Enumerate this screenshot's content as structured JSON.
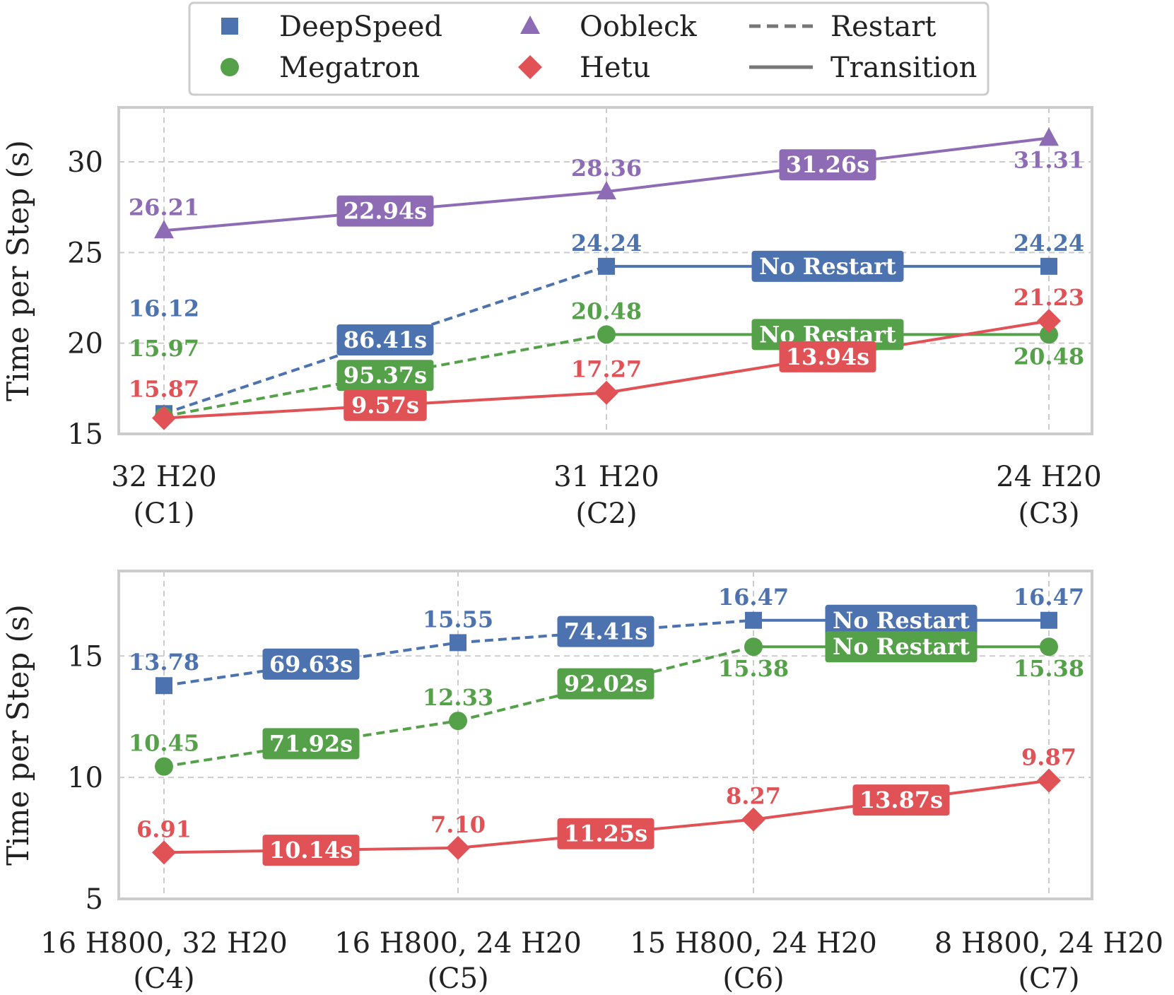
{
  "chart_data": [
    {
      "type": "line",
      "ylabel": "Time per Step (s)",
      "ylim": [
        15,
        33
      ],
      "yticks": [
        15,
        20,
        25,
        30
      ],
      "categories": [
        {
          "line1": "32 H20",
          "line2": "(C1)"
        },
        {
          "line1": "31 H20",
          "line2": "(C2)"
        },
        {
          "line1": "24 H20",
          "line2": "(C3)"
        }
      ],
      "series": [
        {
          "name": "Oobleck",
          "marker": "triangle",
          "values": [
            26.21,
            28.36,
            31.31
          ],
          "value_labels": [
            "26.21",
            "28.36",
            "31.31"
          ],
          "label_placement": [
            "above",
            "above",
            "below"
          ],
          "segment_styles": [
            "solid",
            "solid"
          ],
          "segment_labels": [
            "22.94s",
            "31.26s"
          ]
        },
        {
          "name": "DeepSpeed",
          "marker": "square",
          "values": [
            16.12,
            24.24,
            24.24
          ],
          "value_labels": [
            "16.12",
            "24.24",
            "24.24"
          ],
          "label_placement": [
            "above-far",
            "above",
            "above"
          ],
          "segment_styles": [
            "dashed",
            "solid"
          ],
          "segment_labels": [
            "86.41s",
            "No Restart"
          ]
        },
        {
          "name": "Megatron",
          "marker": "circle",
          "values": [
            15.97,
            20.48,
            20.48
          ],
          "value_labels": [
            "15.97",
            "20.48",
            "20.48"
          ],
          "label_placement": [
            "above-mid",
            "above",
            "below"
          ],
          "segment_styles": [
            "dashed",
            "solid"
          ],
          "segment_labels": [
            "95.37s",
            "No Restart"
          ]
        },
        {
          "name": "Hetu",
          "marker": "diamond",
          "values": [
            15.87,
            17.27,
            21.23
          ],
          "value_labels": [
            "15.87",
            "17.27",
            "21.23"
          ],
          "label_placement": [
            "above",
            "above",
            "above"
          ],
          "segment_styles": [
            "solid",
            "solid"
          ],
          "segment_labels": [
            "9.57s",
            "13.94s"
          ]
        }
      ]
    },
    {
      "type": "line",
      "ylabel": "Time per Step (s)",
      "ylim": [
        5,
        18.5
      ],
      "yticks": [
        5,
        10,
        15
      ],
      "categories": [
        {
          "line1": "16 H800, 32 H20",
          "line2": "(C4)"
        },
        {
          "line1": "16 H800, 24 H20",
          "line2": "(C5)"
        },
        {
          "line1": "15 H800, 24 H20",
          "line2": "(C6)"
        },
        {
          "line1": "8 H800, 24 H20",
          "line2": "(C7)"
        }
      ],
      "series": [
        {
          "name": "DeepSpeed",
          "marker": "square",
          "values": [
            13.78,
            15.55,
            16.47,
            16.47
          ],
          "value_labels": [
            "13.78",
            "15.55",
            "16.47",
            "16.47"
          ],
          "label_placement": [
            "above",
            "above",
            "above",
            "above"
          ],
          "segment_styles": [
            "dashed",
            "dashed",
            "solid"
          ],
          "segment_labels": [
            "69.63s",
            "74.41s",
            "No Restart"
          ]
        },
        {
          "name": "Megatron",
          "marker": "circle",
          "values": [
            10.45,
            12.33,
            15.38,
            15.38
          ],
          "value_labels": [
            "10.45",
            "12.33",
            "15.38",
            "15.38"
          ],
          "label_placement": [
            "above",
            "above",
            "below",
            "below"
          ],
          "segment_styles": [
            "dashed",
            "dashed",
            "solid"
          ],
          "segment_labels": [
            "71.92s",
            "92.02s",
            "No Restart"
          ]
        },
        {
          "name": "Hetu",
          "marker": "diamond",
          "values": [
            6.91,
            7.1,
            8.27,
            9.87
          ],
          "value_labels": [
            "6.91",
            "7.10",
            "8.27",
            "9.87"
          ],
          "label_placement": [
            "above",
            "above",
            "above",
            "above"
          ],
          "segment_styles": [
            "solid",
            "solid",
            "solid"
          ],
          "segment_labels": [
            "10.14s",
            "11.25s",
            "13.87s"
          ]
        }
      ]
    }
  ],
  "legend": {
    "placement": "top-center",
    "entries": [
      {
        "label": "DeepSpeed",
        "kind": "marker",
        "marker": "square",
        "series": "DeepSpeed"
      },
      {
        "label": "Oobleck",
        "kind": "marker",
        "marker": "triangle",
        "series": "Oobleck"
      },
      {
        "label": "Restart",
        "kind": "line",
        "style": "dashed"
      },
      {
        "label": "Megatron",
        "kind": "marker",
        "marker": "circle",
        "series": "Megatron"
      },
      {
        "label": "Hetu",
        "kind": "marker",
        "marker": "diamond",
        "series": "Hetu"
      },
      {
        "label": "Transition",
        "kind": "line",
        "style": "solid"
      }
    ]
  },
  "colors": {
    "DeepSpeed": "#4C72B0",
    "Megatron": "#55A14A",
    "Oobleck": "#8E6BB5",
    "Hetu": "#E05256",
    "legend_line": "#777777",
    "grid": "#cccccc",
    "frame": "#cccccc",
    "text": "#222222"
  }
}
